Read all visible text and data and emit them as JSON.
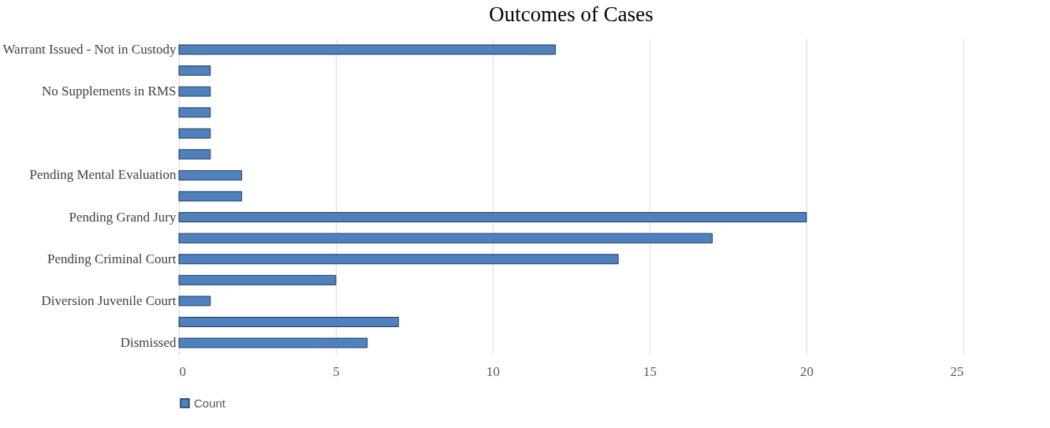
{
  "chart_data": {
    "type": "bar",
    "orientation": "horizontal",
    "title": "Outcomes of Cases",
    "categories": [
      "Warrant Issued - Not in Custody",
      null,
      "No Supplements in RMS",
      null,
      null,
      null,
      "Pending Mental Evaluation",
      null,
      "Pending Grand Jury",
      null,
      "Pending Criminal Court",
      null,
      "Diversion Juvenile Court",
      null,
      "Dismissed"
    ],
    "series": [
      {
        "name": "Count",
        "color": "#4f81bd",
        "values": [
          12,
          1,
          1,
          1,
          1,
          1,
          2,
          2,
          20,
          17,
          14,
          5,
          1,
          7,
          6
        ]
      }
    ],
    "xlim": [
      0,
      25
    ],
    "xticks": [
      0,
      5,
      10,
      15,
      20,
      25
    ],
    "grid": "x",
    "legend": "bottom"
  }
}
